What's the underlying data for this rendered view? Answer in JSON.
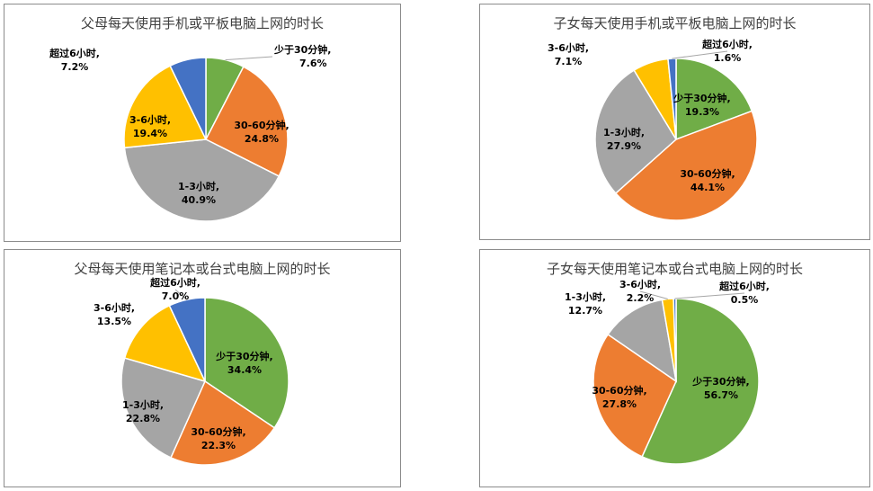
{
  "chart_data": [
    {
      "type": "pie",
      "title": "父母每天使用手机或平板电脑上网的时长",
      "categories": [
        "少于30分钟",
        "30-60分钟",
        "1-3小时",
        "3-6小时",
        "超过6小时"
      ],
      "values": [
        7.6,
        24.8,
        40.9,
        19.4,
        7.2
      ],
      "value_labels": [
        "7.6%",
        "24.8%",
        "40.9%",
        "19.4%",
        "7.2%"
      ],
      "colors": [
        "#70ad47",
        "#ed7d31",
        "#a5a5a5",
        "#ffc000",
        "#4472c4"
      ]
    },
    {
      "type": "pie",
      "title": "子女每天使用手机或平板电脑上网的时长",
      "categories": [
        "少于30分钟",
        "30-60分钟",
        "1-3小时",
        "3-6小时",
        "超过6小时"
      ],
      "values": [
        19.3,
        44.1,
        27.9,
        7.1,
        1.6
      ],
      "value_labels": [
        "19.3%",
        "44.1%",
        "27.9%",
        "7.1%",
        "1.6%"
      ],
      "colors": [
        "#70ad47",
        "#ed7d31",
        "#a5a5a5",
        "#ffc000",
        "#4472c4"
      ]
    },
    {
      "type": "pie",
      "title": "父母每天使用笔记本或台式电脑上网的时长",
      "categories": [
        "少于30分钟",
        "30-60分钟",
        "1-3小时",
        "3-6小时",
        "超过6小时"
      ],
      "values": [
        34.4,
        22.3,
        22.8,
        13.5,
        7.0
      ],
      "value_labels": [
        "34.4%",
        "22.3%",
        "22.8%",
        "13.5%",
        "7.0%"
      ],
      "colors": [
        "#70ad47",
        "#ed7d31",
        "#a5a5a5",
        "#ffc000",
        "#4472c4"
      ]
    },
    {
      "type": "pie",
      "title": "子女每天使用笔记本或台式电脑上网的时长",
      "categories": [
        "少于30分钟",
        "30-60分钟",
        "1-3小时",
        "3-6小时",
        "超过6小时"
      ],
      "values": [
        56.7,
        27.8,
        12.7,
        2.2,
        0.5
      ],
      "value_labels": [
        "56.7%",
        "27.8%",
        "12.7%",
        "2.2%",
        "0.5%"
      ],
      "colors": [
        "#70ad47",
        "#ed7d31",
        "#a5a5a5",
        "#ffc000",
        "#4472c4"
      ]
    }
  ]
}
